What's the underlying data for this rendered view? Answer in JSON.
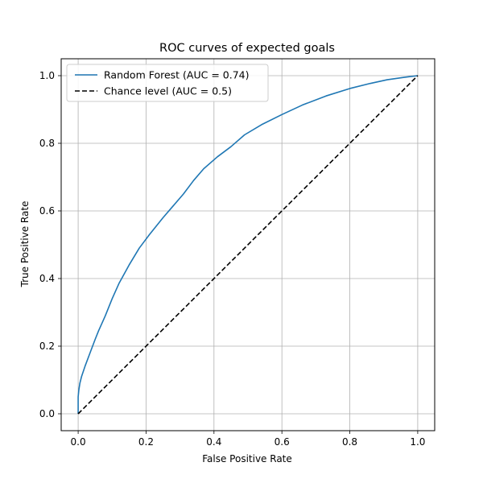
{
  "chart_data": {
    "type": "line",
    "title": "ROC curves of expected goals",
    "xlabel": "False Positive Rate",
    "ylabel": "True Positive Rate",
    "xlim": [
      -0.05,
      1.05
    ],
    "ylim": [
      -0.05,
      1.05
    ],
    "xticks": [
      "0.0",
      "0.2",
      "0.4",
      "0.6",
      "0.8",
      "1.0"
    ],
    "yticks": [
      "0.0",
      "0.2",
      "0.4",
      "0.6",
      "0.8",
      "1.0"
    ],
    "grid": true,
    "legend_position": "top-left",
    "series": [
      {
        "name": "Random Forest (AUC = 0.74)",
        "color": "#1f77b4",
        "style": "solid",
        "x": [
          0.0,
          0.0,
          0.002,
          0.005,
          0.01,
          0.02,
          0.035,
          0.05,
          0.06,
          0.08,
          0.1,
          0.12,
          0.15,
          0.18,
          0.21,
          0.25,
          0.28,
          0.31,
          0.34,
          0.37,
          0.41,
          0.45,
          0.49,
          0.54,
          0.6,
          0.66,
          0.73,
          0.8,
          0.86,
          0.91,
          0.96,
          1.0
        ],
        "y": [
          0.0,
          0.05,
          0.07,
          0.09,
          0.11,
          0.14,
          0.18,
          0.22,
          0.245,
          0.29,
          0.34,
          0.385,
          0.44,
          0.49,
          0.53,
          0.58,
          0.615,
          0.65,
          0.69,
          0.725,
          0.76,
          0.79,
          0.825,
          0.855,
          0.885,
          0.913,
          0.94,
          0.962,
          0.977,
          0.988,
          0.995,
          1.0
        ]
      },
      {
        "name": "Chance level (AUC = 0.5)",
        "color": "#000000",
        "style": "dashed",
        "x": [
          0.0,
          1.0
        ],
        "y": [
          0.0,
          1.0
        ]
      }
    ]
  }
}
